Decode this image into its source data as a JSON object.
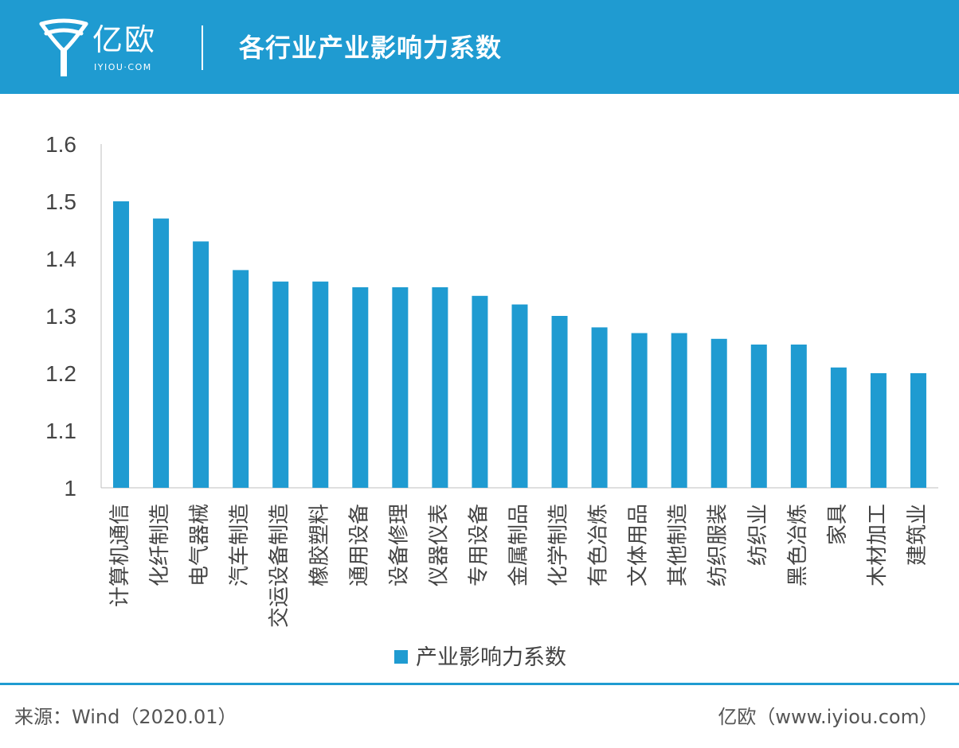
{
  "header": {
    "logo_text": "亿欧",
    "logo_sub": "IYIOU·COM",
    "title": "各行业产业影响力系数"
  },
  "colors": {
    "header_bg": "#1f9bd1",
    "bar": "#1f9bd1",
    "axis": "#bfbfbf"
  },
  "chart_data": {
    "type": "bar",
    "categories": [
      "计算机通信",
      "化纤制造",
      "电气器械",
      "汽车制造",
      "交运设备制造",
      "橡胶塑料",
      "通用设备",
      "设备修理",
      "仪器仪表",
      "专用设备",
      "金属制品",
      "化学制造",
      "有色冶炼",
      "文体用品",
      "其他制造",
      "纺织服装",
      "纺织业",
      "黑色冶炼",
      "家具",
      "木材加工",
      "建筑业"
    ],
    "series": [
      {
        "name": "产业影响力系数",
        "values": [
          1.5,
          1.47,
          1.43,
          1.38,
          1.36,
          1.36,
          1.35,
          1.35,
          1.35,
          1.335,
          1.32,
          1.3,
          1.28,
          1.27,
          1.27,
          1.26,
          1.25,
          1.25,
          1.21,
          1.2,
          1.2
        ]
      }
    ],
    "ylim": [
      1,
      1.6
    ],
    "yticks": [
      "1",
      "1.1",
      "1.2",
      "1.3",
      "1.4",
      "1.5",
      "1.6"
    ],
    "grid": false,
    "legend_position": "bottom"
  },
  "footer": {
    "source": "来源：Wind（2020.01）",
    "brand": "亿欧（www.iyiou.com）"
  }
}
